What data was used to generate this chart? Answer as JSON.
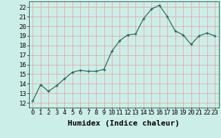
{
  "x": [
    0,
    1,
    2,
    3,
    4,
    5,
    6,
    7,
    8,
    9,
    10,
    11,
    12,
    13,
    14,
    15,
    16,
    17,
    18,
    19,
    20,
    21,
    22,
    23
  ],
  "y": [
    12.2,
    13.9,
    13.2,
    13.8,
    14.5,
    15.2,
    15.4,
    15.3,
    15.3,
    15.5,
    17.4,
    18.5,
    19.1,
    19.2,
    20.8,
    21.8,
    22.2,
    21.0,
    19.5,
    19.1,
    18.1,
    19.0,
    19.3,
    19.0
  ],
  "xlabel": "Humidex (Indice chaleur)",
  "ylim": [
    11.5,
    22.6
  ],
  "xlim": [
    -0.5,
    23.5
  ],
  "yticks": [
    12,
    13,
    14,
    15,
    16,
    17,
    18,
    19,
    20,
    21,
    22
  ],
  "xticks": [
    0,
    1,
    2,
    3,
    4,
    5,
    6,
    7,
    8,
    9,
    10,
    11,
    12,
    13,
    14,
    15,
    16,
    17,
    18,
    19,
    20,
    21,
    22,
    23
  ],
  "line_color": "#1e6b5e",
  "bg_color": "#cceee8",
  "grid_color": "#ee9999",
  "xlabel_fontsize": 8,
  "tick_fontsize": 6.5
}
